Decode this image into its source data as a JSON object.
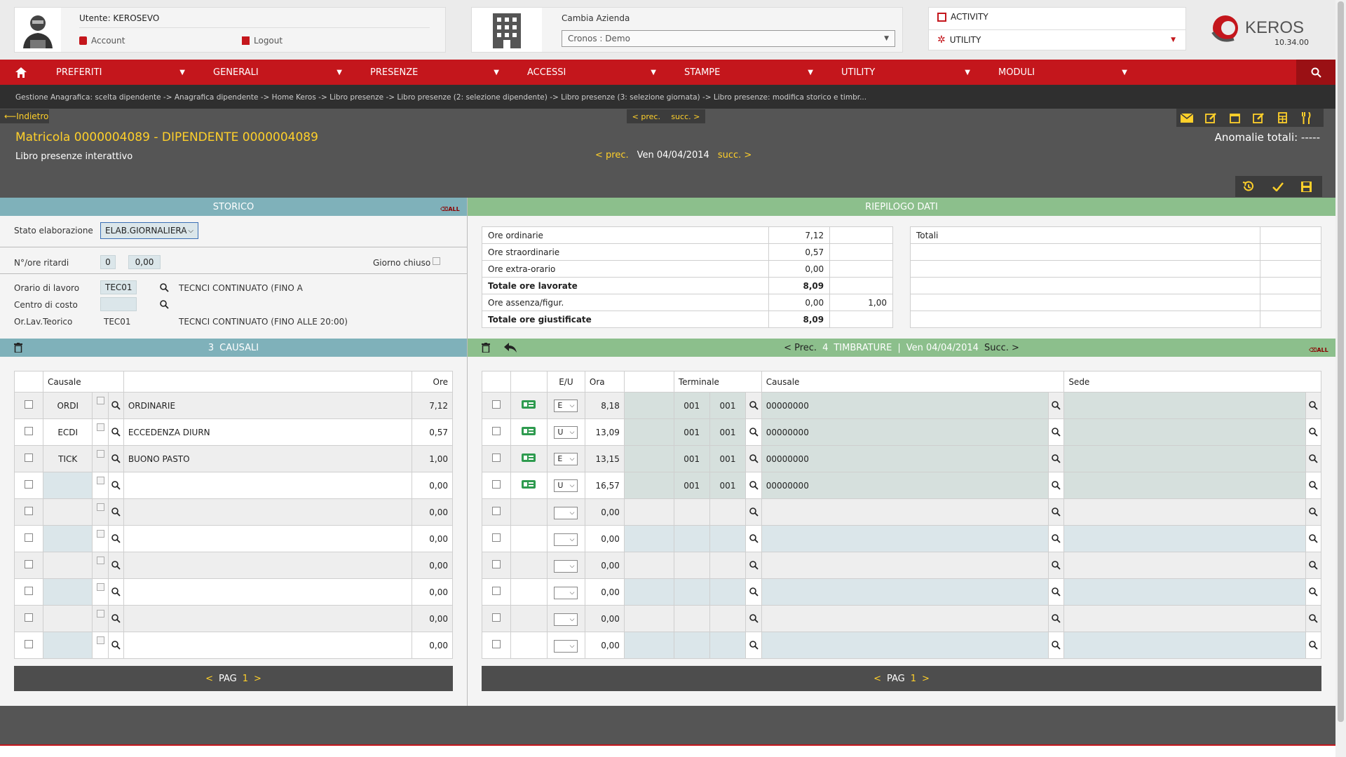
{
  "header": {
    "user_label": "Utente: KEROSEVO",
    "account_label": "Account",
    "logout_label": "Logout",
    "company_label": "Cambia Azienda",
    "company_value": "Cronos : Demo",
    "activity_label": "ACTIVITY",
    "utility_label": "UTILITY",
    "brand_name": "KEROS",
    "version": "10.34.00"
  },
  "menu": {
    "items": [
      {
        "label": "PREFERITI"
      },
      {
        "label": "GENERALI"
      },
      {
        "label": "PRESENZE"
      },
      {
        "label": "ACCESSI"
      },
      {
        "label": "STAMPE"
      },
      {
        "label": "UTILITY"
      },
      {
        "label": "MODULI"
      }
    ]
  },
  "breadcrumb": "Gestione Anagrafica: scelta dipendente -> Anagrafica dipendente -> Home Keros -> Libro presenze -> Libro presenze (2: selezione dipendente) -> Libro presenze (3: selezione giornata) -> Libro presenze: modifica storico e timbr...",
  "toolbar": {
    "back_label": "Indietro",
    "prev_small": "< prec.",
    "next_small": "succ. >"
  },
  "page": {
    "title": "Matricola 0000004089 - DIPENDENTE 0000004089",
    "subtitle": "Libro presenze interattivo",
    "prev_label": "< prec.",
    "date_label": "Ven 04/04/2014",
    "next_label": "succ. >",
    "anomalies_label": "Anomalie totali: -----"
  },
  "storico": {
    "header": "STORICO",
    "stato_label": "Stato elaborazione",
    "stato_value": "ELAB.GIORNALIERA",
    "ritardi_label": "N°/ore ritardi",
    "ritardi_count": "0",
    "ritardi_hours": "0,00",
    "giorno_chiuso_label": "Giorno chiuso",
    "orario_label": "Orario di lavoro",
    "orario_code": "TEC01",
    "orario_desc": "TECNCI CONTINUATO (FINO A",
    "centro_label": "Centro di costo",
    "teorico_label": "Or.Lav.Teorico",
    "teorico_code": "TEC01",
    "teorico_desc": "TECNCI CONTINUATO (FINO ALLE 20:00)"
  },
  "riepilogo": {
    "header": "RIEPILOGO DATI",
    "rows": [
      {
        "label": "Ore ordinarie",
        "value": "7,12",
        "extra": ""
      },
      {
        "label": "Ore straordinarie",
        "value": "0,57",
        "extra": ""
      },
      {
        "label": "Ore extra-orario",
        "value": "0,00",
        "extra": ""
      },
      {
        "label": "Totale ore lavorate",
        "value": "8,09",
        "extra": ""
      },
      {
        "label": "Ore assenza/figur.",
        "value": "0,00",
        "extra": "1,00"
      },
      {
        "label": "Totale ore giustificate",
        "value": "8,09",
        "extra": ""
      }
    ],
    "totali_label": "Totali"
  },
  "causali": {
    "count": "3",
    "header": "CAUSALI",
    "col_causale": "Causale",
    "col_ore": "Ore",
    "rows": [
      {
        "code": "ORDI",
        "desc": "ORDINARIE",
        "ore": "7,12"
      },
      {
        "code": "ECDI",
        "desc": "ECCEDENZA DIURN",
        "ore": "0,57"
      },
      {
        "code": "TICK",
        "desc": "BUONO PASTO",
        "ore": "1,00"
      },
      {
        "code": "",
        "desc": "",
        "ore": "0,00"
      },
      {
        "code": "",
        "desc": "",
        "ore": "0,00"
      },
      {
        "code": "",
        "desc": "",
        "ore": "0,00"
      },
      {
        "code": "",
        "desc": "",
        "ore": "0,00"
      },
      {
        "code": "",
        "desc": "",
        "ore": "0,00"
      },
      {
        "code": "",
        "desc": "",
        "ore": "0,00"
      },
      {
        "code": "",
        "desc": "",
        "ore": "0,00"
      }
    ],
    "pager": {
      "prev": "<",
      "label": "PAG",
      "page": "1",
      "next": ">"
    }
  },
  "timbrature": {
    "prev_label": "< Prec.",
    "count": "4",
    "header": "TIMBRATURE",
    "separator": "|",
    "date": "Ven 04/04/2014",
    "next_label": "Succ. >",
    "col_eu": "E/U",
    "col_ora": "Ora",
    "col_terminale": "Terminale",
    "col_causale": "Causale",
    "col_sede": "Sede",
    "rows": [
      {
        "eu": "E",
        "ora": "8,18",
        "t1": "001",
        "t2": "001",
        "causale": "00000000"
      },
      {
        "eu": "U",
        "ora": "13,09",
        "t1": "001",
        "t2": "001",
        "causale": "00000000"
      },
      {
        "eu": "E",
        "ora": "13,15",
        "t1": "001",
        "t2": "001",
        "causale": "00000000"
      },
      {
        "eu": "U",
        "ora": "16,57",
        "t1": "001",
        "t2": "001",
        "causale": "00000000"
      },
      {
        "eu": "",
        "ora": "0,00",
        "t1": "",
        "t2": "",
        "causale": ""
      },
      {
        "eu": "",
        "ora": "0,00",
        "t1": "",
        "t2": "",
        "causale": ""
      },
      {
        "eu": "",
        "ora": "0,00",
        "t1": "",
        "t2": "",
        "causale": ""
      },
      {
        "eu": "",
        "ora": "0,00",
        "t1": "",
        "t2": "",
        "causale": ""
      },
      {
        "eu": "",
        "ora": "0,00",
        "t1": "",
        "t2": "",
        "causale": ""
      },
      {
        "eu": "",
        "ora": "0,00",
        "t1": "",
        "t2": "",
        "causale": ""
      }
    ],
    "pager": {
      "prev": "<",
      "label": "PAG",
      "page": "1",
      "next": ">"
    }
  },
  "colors": {
    "menu_red": "#c4161c",
    "storico_teal": "#7fb1ba",
    "riepilogo_green": "#8cbf8c",
    "accent_yellow": "#ffd02a",
    "dark_bg": "#555555"
  }
}
